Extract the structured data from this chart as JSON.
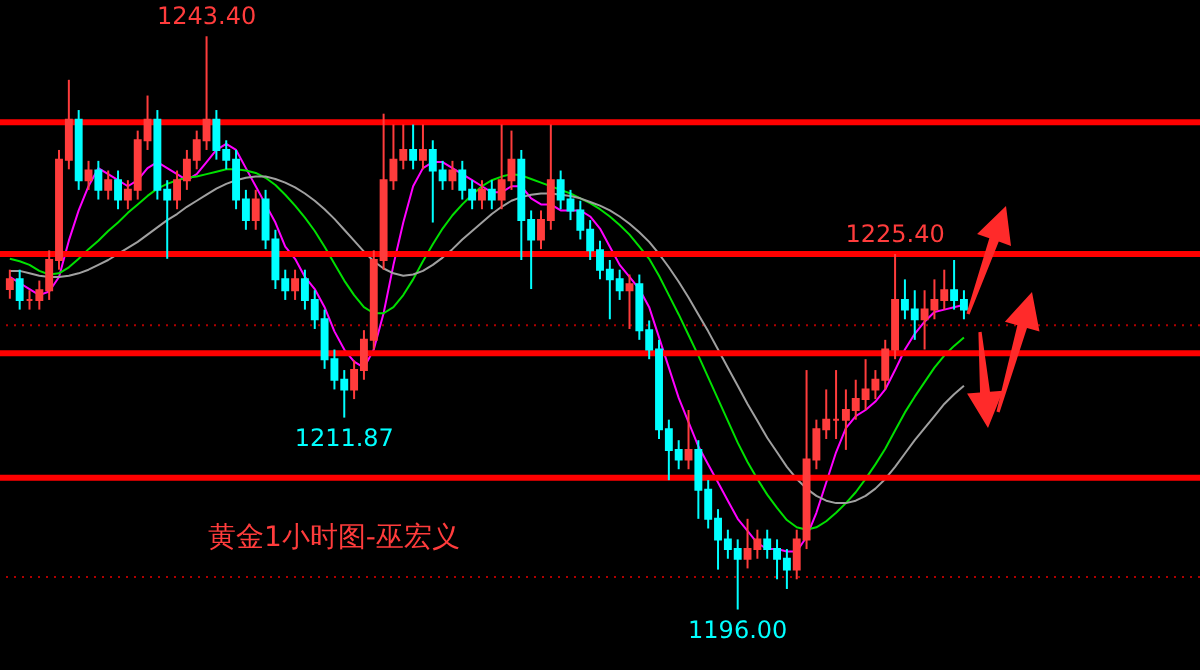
{
  "chart_data": {
    "type": "candlestick",
    "categories": [
      null,
      null,
      null,
      null,
      null,
      null,
      null,
      null,
      null,
      null,
      null,
      null,
      null,
      null,
      null,
      null,
      null,
      null,
      null,
      null,
      null,
      null,
      null,
      null,
      null,
      null,
      null,
      null,
      null,
      null,
      null,
      null,
      null,
      null,
      null,
      null,
      null,
      null,
      null,
      null,
      null,
      null,
      null,
      null,
      null,
      null,
      null,
      null,
      null,
      null,
      null,
      null,
      null,
      null,
      null,
      null,
      null,
      null,
      null,
      null,
      null,
      null,
      null,
      null,
      null,
      null,
      null,
      null,
      null,
      null,
      null,
      null,
      null,
      null,
      null,
      null,
      null,
      null,
      null,
      null,
      null,
      null,
      null,
      null,
      null,
      null,
      null,
      null,
      null,
      null,
      null,
      null,
      null,
      null,
      null,
      null,
      null,
      null
    ],
    "ohlc": [
      [
        1222.5,
        1224.1,
        1221.7,
        1223.3
      ],
      [
        1223.3,
        1224.1,
        1220.8,
        1221.6
      ],
      [
        1221.6,
        1222.4,
        1220.8,
        1221.6
      ],
      [
        1221.6,
        1223.2,
        1220.8,
        1222.4
      ],
      [
        1222.4,
        1225.7,
        1221.6,
        1224.9
      ],
      [
        1224.9,
        1234.0,
        1224.1,
        1233.2
      ],
      [
        1233.2,
        1239.8,
        1232.4,
        1236.5
      ],
      [
        1236.5,
        1237.3,
        1230.7,
        1231.5
      ],
      [
        1231.5,
        1233.1,
        1230.7,
        1232.3
      ],
      [
        1232.3,
        1233.1,
        1229.9,
        1230.7
      ],
      [
        1230.7,
        1232.3,
        1229.9,
        1231.5
      ],
      [
        1231.5,
        1232.3,
        1229.1,
        1229.9
      ],
      [
        1229.9,
        1231.5,
        1229.1,
        1230.7
      ],
      [
        1230.7,
        1235.6,
        1229.9,
        1234.8
      ],
      [
        1234.8,
        1238.5,
        1234.0,
        1236.5
      ],
      [
        1236.5,
        1237.3,
        1229.9,
        1230.7
      ],
      [
        1230.7,
        1231.5,
        1225.0,
        1229.9
      ],
      [
        1229.9,
        1232.3,
        1229.1,
        1231.5
      ],
      [
        1231.5,
        1234.0,
        1230.7,
        1233.2
      ],
      [
        1233.2,
        1235.6,
        1232.4,
        1234.8
      ],
      [
        1234.8,
        1243.4,
        1234.0,
        1236.5
      ],
      [
        1236.5,
        1237.3,
        1233.2,
        1234.0
      ],
      [
        1234.0,
        1234.8,
        1232.4,
        1233.2
      ],
      [
        1233.2,
        1234.0,
        1229.1,
        1229.9
      ],
      [
        1229.9,
        1230.7,
        1227.4,
        1228.2
      ],
      [
        1228.2,
        1230.7,
        1227.4,
        1229.9
      ],
      [
        1229.9,
        1230.7,
        1225.8,
        1226.6
      ],
      [
        1226.6,
        1227.4,
        1222.5,
        1223.3
      ],
      [
        1223.3,
        1224.1,
        1221.6,
        1222.4
      ],
      [
        1222.4,
        1224.1,
        1221.6,
        1223.3
      ],
      [
        1223.3,
        1224.1,
        1220.8,
        1221.6
      ],
      [
        1221.6,
        1222.4,
        1219.2,
        1220.0
      ],
      [
        1220.0,
        1220.8,
        1215.9,
        1216.7
      ],
      [
        1216.7,
        1217.5,
        1214.2,
        1215.0
      ],
      [
        1215.0,
        1215.8,
        1211.87,
        1214.2
      ],
      [
        1214.2,
        1216.6,
        1213.4,
        1215.8
      ],
      [
        1215.8,
        1219.1,
        1215.0,
        1218.3
      ],
      [
        1218.3,
        1225.7,
        1217.5,
        1224.9
      ],
      [
        1224.9,
        1237.0,
        1224.1,
        1231.5
      ],
      [
        1231.5,
        1236.1,
        1230.7,
        1233.2
      ],
      [
        1233.2,
        1236.1,
        1232.4,
        1234.0
      ],
      [
        1234.0,
        1236.1,
        1232.4,
        1233.2
      ],
      [
        1233.2,
        1236.1,
        1232.4,
        1234.0
      ],
      [
        1234.0,
        1234.8,
        1228.0,
        1232.3
      ],
      [
        1232.3,
        1233.1,
        1230.7,
        1231.5
      ],
      [
        1231.5,
        1233.1,
        1230.7,
        1232.3
      ],
      [
        1232.3,
        1233.1,
        1229.9,
        1230.7
      ],
      [
        1230.7,
        1231.5,
        1229.1,
        1229.9
      ],
      [
        1229.9,
        1231.5,
        1229.1,
        1230.7
      ],
      [
        1230.7,
        1231.5,
        1229.1,
        1229.9
      ],
      [
        1229.9,
        1236.1,
        1229.1,
        1231.5
      ],
      [
        1231.5,
        1235.6,
        1230.7,
        1233.2
      ],
      [
        1233.2,
        1234.0,
        1224.9,
        1228.2
      ],
      [
        1228.2,
        1229.0,
        1222.5,
        1226.6
      ],
      [
        1226.6,
        1229.0,
        1225.8,
        1228.2
      ],
      [
        1228.2,
        1236.1,
        1227.4,
        1231.5
      ],
      [
        1231.5,
        1232.3,
        1229.1,
        1229.9
      ],
      [
        1229.9,
        1230.7,
        1228.2,
        1229.0
      ],
      [
        1229.0,
        1229.8,
        1226.6,
        1227.4
      ],
      [
        1227.4,
        1228.2,
        1224.9,
        1225.7
      ],
      [
        1225.7,
        1226.5,
        1223.3,
        1224.1
      ],
      [
        1224.1,
        1224.9,
        1220.0,
        1223.3
      ],
      [
        1223.3,
        1224.1,
        1221.6,
        1222.4
      ],
      [
        1222.4,
        1223.7,
        1219.2,
        1222.9
      ],
      [
        1222.9,
        1223.7,
        1218.3,
        1219.1
      ],
      [
        1219.1,
        1219.9,
        1216.7,
        1217.5
      ],
      [
        1217.5,
        1218.3,
        1210.1,
        1210.9
      ],
      [
        1210.9,
        1211.7,
        1206.7,
        1209.2
      ],
      [
        1209.2,
        1210.0,
        1207.6,
        1208.4
      ],
      [
        1208.4,
        1212.5,
        1207.6,
        1209.2
      ],
      [
        1209.2,
        1210.0,
        1203.5,
        1205.9
      ],
      [
        1205.9,
        1206.7,
        1202.7,
        1203.5
      ],
      [
        1203.5,
        1204.3,
        1199.3,
        1201.8
      ],
      [
        1201.8,
        1202.6,
        1200.2,
        1201.0
      ],
      [
        1201.0,
        1201.8,
        1196.0,
        1200.2
      ],
      [
        1200.2,
        1203.5,
        1199.4,
        1201.0
      ],
      [
        1201.0,
        1202.6,
        1200.2,
        1201.8
      ],
      [
        1201.8,
        1202.6,
        1200.2,
        1201.0
      ],
      [
        1201.0,
        1201.8,
        1198.5,
        1200.2
      ],
      [
        1200.2,
        1201.0,
        1197.7,
        1199.3
      ],
      [
        1199.3,
        1202.6,
        1198.5,
        1201.8
      ],
      [
        1201.8,
        1215.8,
        1201.0,
        1208.4
      ],
      [
        1208.4,
        1211.7,
        1207.6,
        1210.9
      ],
      [
        1210.9,
        1214.2,
        1210.1,
        1211.7
      ],
      [
        1211.7,
        1215.8,
        1210.1,
        1211.7
      ],
      [
        1211.7,
        1214.2,
        1209.2,
        1212.5
      ],
      [
        1212.5,
        1215.0,
        1211.7,
        1213.4
      ],
      [
        1213.4,
        1216.7,
        1212.5,
        1214.2
      ],
      [
        1214.2,
        1215.8,
        1213.4,
        1215.0
      ],
      [
        1215.0,
        1218.3,
        1214.2,
        1217.5
      ],
      [
        1217.5,
        1225.4,
        1216.7,
        1221.6
      ],
      [
        1221.6,
        1223.3,
        1220.0,
        1220.8
      ],
      [
        1220.8,
        1222.4,
        1218.3,
        1220.0
      ],
      [
        1220.0,
        1222.4,
        1217.5,
        1220.8
      ],
      [
        1220.8,
        1223.3,
        1220.0,
        1221.6
      ],
      [
        1221.6,
        1224.1,
        1220.8,
        1222.4
      ],
      [
        1222.4,
        1224.9,
        1220.8,
        1221.6
      ],
      [
        1221.6,
        1222.4,
        1220.0,
        1220.8
      ]
    ],
    "colors": [
      "#ff3c3c",
      "#00ffff",
      "#ff3c3c",
      "#ff3c3c",
      "#ff3c3c",
      "#ff3c3c",
      "#ff3c3c",
      "#00ffff",
      "#ff3c3c",
      "#00ffff",
      "#ff3c3c",
      "#00ffff",
      "#ff3c3c",
      "#ff3c3c",
      "#ff3c3c",
      "#00ffff",
      "#00ffff",
      "#ff3c3c",
      "#ff3c3c",
      "#ff3c3c",
      "#ff3c3c",
      "#00ffff",
      "#00ffff",
      "#00ffff",
      "#00ffff",
      "#ff3c3c",
      "#00ffff",
      "#00ffff",
      "#00ffff",
      "#ff3c3c",
      "#00ffff",
      "#00ffff",
      "#00ffff",
      "#00ffff",
      "#00ffff",
      "#ff3c3c",
      "#ff3c3c",
      "#ff3c3c",
      "#ff3c3c",
      "#ff3c3c",
      "#ff3c3c",
      "#00ffff",
      "#ff3c3c",
      "#00ffff",
      "#00ffff",
      "#ff3c3c",
      "#00ffff",
      "#00ffff",
      "#ff3c3c",
      "#00ffff",
      "#ff3c3c",
      "#ff3c3c",
      "#00ffff",
      "#00ffff",
      "#ff3c3c",
      "#ff3c3c",
      "#00ffff",
      "#00ffff",
      "#00ffff",
      "#00ffff",
      "#00ffff",
      "#00ffff",
      "#00ffff",
      "#ff3c3c",
      "#00ffff",
      "#00ffff",
      "#00ffff",
      "#00ffff",
      "#00ffff",
      "#ff3c3c",
      "#00ffff",
      "#00ffff",
      "#00ffff",
      "#00ffff",
      "#00ffff",
      "#ff3c3c",
      "#ff3c3c",
      "#00ffff",
      "#00ffff",
      "#00ffff",
      "#ff3c3c",
      "#ff3c3c",
      "#ff3c3c",
      "#ff3c3c",
      "#ff3c3c",
      "#ff3c3c",
      "#ff3c3c",
      "#ff3c3c",
      "#ff3c3c",
      "#ff3c3c",
      "#ff3c3c",
      "#00ffff",
      "#00ffff",
      "#ff3c3c",
      "#ff3c3c",
      "#ff3c3c",
      "#00ffff",
      "#00ffff"
    ],
    "series": [
      {
        "type": "line",
        "color": "#ff00ff",
        "values": [
          1223.5,
          1223,
          1222.5,
          1222,
          1222.3,
          1223.5,
          1226.5,
          1229,
          1231,
          1232.5,
          1232,
          1231.5,
          1231,
          1231.5,
          1232.5,
          1233,
          1232.5,
          1232,
          1231.5,
          1232,
          1233,
          1234,
          1234.5,
          1234,
          1232.5,
          1231,
          1229.5,
          1228,
          1226,
          1225,
          1223.5,
          1222.5,
          1221,
          1219,
          1217.5,
          1216.5,
          1216,
          1217.5,
          1220.5,
          1224.5,
          1228,
          1231,
          1232.5,
          1233,
          1233,
          1232.5,
          1232,
          1231.5,
          1231,
          1230.5,
          1230.5,
          1231,
          1231,
          1230,
          1229.5,
          1229.5,
          1229,
          1229,
          1229,
          1228.5,
          1227.5,
          1226,
          1224.5,
          1223.5,
          1222.5,
          1221,
          1218.5,
          1216,
          1213.5,
          1211.5,
          1209.5,
          1208,
          1206.5,
          1205,
          1203.5,
          1202.5,
          1201.5,
          1201,
          1201,
          1200.8,
          1200.8,
          1202,
          1204,
          1206.5,
          1209,
          1211,
          1212,
          1212.5,
          1213.2,
          1214.2,
          1215.8,
          1217.5,
          1218.8,
          1219.8,
          1220.6,
          1220.8,
          1221,
          1221.2
        ]
      },
      {
        "type": "line",
        "color": "#00e000",
        "values": [
          1225,
          1224.8,
          1224.5,
          1224,
          1223.7,
          1223.8,
          1224.3,
          1225,
          1225.8,
          1226.5,
          1227.3,
          1228,
          1228.8,
          1229.5,
          1230.2,
          1230.8,
          1231.2,
          1231.5,
          1231.7,
          1231.8,
          1232,
          1232.2,
          1232.4,
          1232.4,
          1232.3,
          1232.1,
          1231.7,
          1231.1,
          1230.3,
          1229.4,
          1228.4,
          1227.3,
          1226,
          1224.6,
          1223.2,
          1222,
          1221,
          1220.5,
          1220.5,
          1221,
          1222,
          1223.3,
          1224.8,
          1226.2,
          1227.5,
          1228.6,
          1229.5,
          1230.3,
          1231,
          1231.5,
          1231.8,
          1232,
          1231.9,
          1231.6,
          1231.3,
          1231,
          1230.7,
          1230.4,
          1230,
          1229.6,
          1229.1,
          1228.5,
          1227.8,
          1227,
          1226,
          1225,
          1223.6,
          1222,
          1220.4,
          1218.7,
          1217,
          1215.2,
          1213.4,
          1211.6,
          1209.8,
          1208.2,
          1206.8,
          1205.5,
          1204.4,
          1203.4,
          1202.8,
          1202.6,
          1202.8,
          1203.3,
          1204,
          1204.8,
          1205.7,
          1206.8,
          1208,
          1209.3,
          1210.8,
          1212.3,
          1213.6,
          1214.8,
          1216,
          1217,
          1217.8,
          1218.5
        ]
      },
      {
        "type": "line",
        "color": "#a0a0a0",
        "values": [
          1224,
          1224,
          1223.8,
          1223.6,
          1223.5,
          1223.5,
          1223.6,
          1223.8,
          1224.1,
          1224.5,
          1224.9,
          1225.4,
          1225.9,
          1226.4,
          1227,
          1227.6,
          1228.2,
          1228.7,
          1229.3,
          1229.8,
          1230.3,
          1230.8,
          1231.2,
          1231.5,
          1231.7,
          1231.8,
          1231.8,
          1231.6,
          1231.3,
          1230.9,
          1230.4,
          1229.8,
          1229.1,
          1228.3,
          1227.4,
          1226.5,
          1225.6,
          1224.8,
          1224.2,
          1223.8,
          1223.6,
          1223.7,
          1224,
          1224.5,
          1225.1,
          1225.8,
          1226.6,
          1227.3,
          1228,
          1228.7,
          1229.3,
          1229.8,
          1230.1,
          1230.3,
          1230.4,
          1230.4,
          1230.3,
          1230.2,
          1230,
          1229.7,
          1229.4,
          1229,
          1228.5,
          1227.9,
          1227.2,
          1226.4,
          1225.4,
          1224.3,
          1223.1,
          1221.8,
          1220.4,
          1219,
          1217.5,
          1216,
          1214.5,
          1213,
          1211.6,
          1210.2,
          1209,
          1207.8,
          1206.8,
          1206,
          1205.4,
          1205,
          1204.8,
          1204.8,
          1205,
          1205.4,
          1206,
          1206.8,
          1207.8,
          1208.9,
          1210,
          1211,
          1212,
          1213,
          1213.8,
          1214.5
        ]
      }
    ],
    "ylim": [
      1191,
      1246.4
    ],
    "yticks": [
      {
        "value": 1198.7,
        "label": null
      },
      {
        "value": 1219.5,
        "label": null
      }
    ],
    "grid": "y",
    "tick_labels": false,
    "ref_lines": [
      {
        "axis": "y",
        "value": 1236.3,
        "color": "#ff0000"
      },
      {
        "axis": "y",
        "value": 1225.4,
        "color": "#ff0000"
      },
      {
        "axis": "y",
        "value": 1217.2,
        "color": "#ff0000"
      },
      {
        "axis": "y",
        "value": 1206.9,
        "color": "#ff0000"
      }
    ],
    "annotations": [
      {
        "text": "1243.40",
        "y": 1243.4
      },
      {
        "text": "1211.87",
        "y": 1211.87
      },
      {
        "text": "1225.40",
        "y": 1225.4
      },
      {
        "text": "1196.00",
        "y": 1196.0
      },
      "黄金1小时图-巫宏义"
    ]
  }
}
